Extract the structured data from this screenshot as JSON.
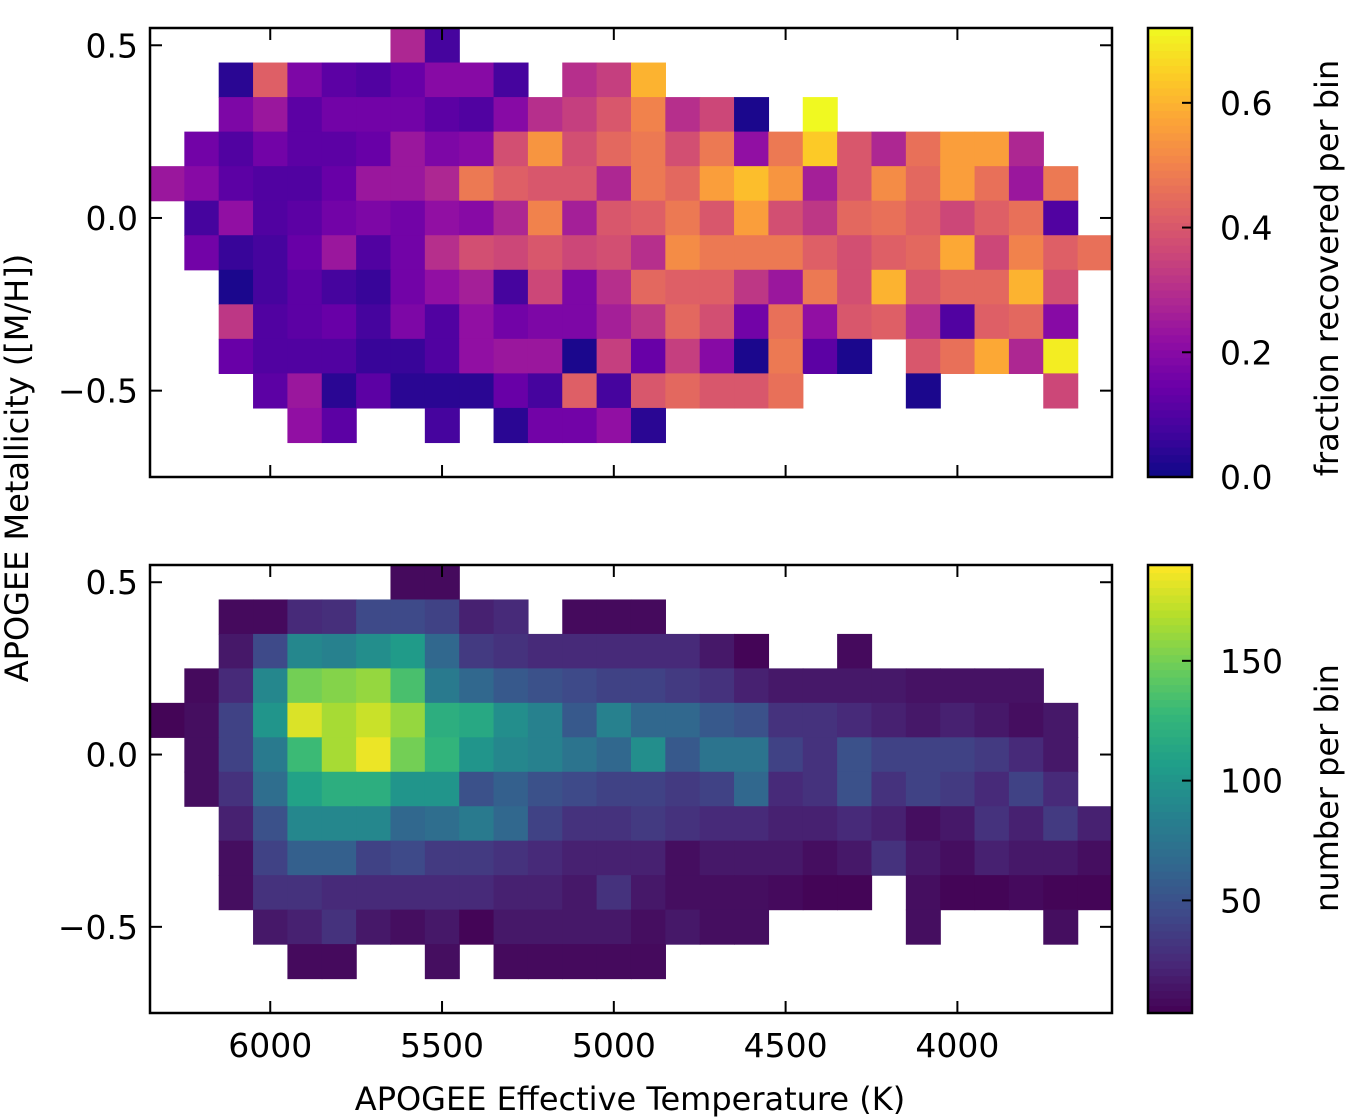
{
  "chart_data": {
    "shared": {
      "ylabel": "APOGEE Metallicity ([M/H])",
      "xlabel": "APOGEE Effective Temperature (K)",
      "x_ticks": [
        6000,
        5500,
        5000,
        4500,
        4000
      ],
      "x_tick_labels": [
        "6000",
        "5500",
        "5000",
        "4500",
        "4000"
      ],
      "y_ticks": [
        0.5,
        0.0,
        -0.5
      ],
      "y_tick_labels": [
        "0.5",
        "0.0",
        "−0.5"
      ],
      "xlim": [
        6350,
        3550
      ],
      "ylim": [
        -0.75,
        0.55
      ],
      "x_bin_start": 6300,
      "x_bin_width": 100,
      "y_bin_start": 0.55,
      "y_bin_height": 0.1
    },
    "panels": [
      {
        "type": "heatmap",
        "colormap": "plasma",
        "colorbar_label": "fraction recovered per bin",
        "colorbar_ticks": [
          0.0,
          0.2,
          0.4,
          0.6
        ],
        "colorbar_tick_labels": [
          "0.0",
          "0.2",
          "0.4",
          "0.6"
        ],
        "vmin": 0.0,
        "vmax": 0.72,
        "rows": [
          [
            null,
            null,
            null,
            null,
            null,
            null,
            null,
            0.28,
            0.08,
            null,
            null,
            null,
            null,
            null,
            null,
            null,
            null,
            null,
            null,
            null,
            null,
            null,
            null,
            null,
            null,
            null,
            null,
            null
          ],
          [
            null,
            null,
            0.04,
            0.42,
            0.18,
            0.12,
            0.1,
            0.14,
            0.2,
            0.2,
            0.08,
            null,
            0.3,
            0.34,
            0.6,
            null,
            null,
            null,
            null,
            null,
            null,
            null,
            null,
            null,
            null,
            null,
            null,
            null
          ],
          [
            null,
            null,
            0.18,
            0.24,
            0.12,
            0.16,
            0.16,
            0.16,
            0.12,
            0.1,
            0.2,
            0.3,
            0.34,
            0.4,
            0.5,
            0.3,
            0.36,
            0.02,
            null,
            0.72,
            null,
            null,
            null,
            null,
            null,
            null,
            null,
            null
          ],
          [
            null,
            0.16,
            0.1,
            0.16,
            0.12,
            0.12,
            0.14,
            0.24,
            0.18,
            0.2,
            0.38,
            0.54,
            0.38,
            0.44,
            0.48,
            0.38,
            0.48,
            0.22,
            0.48,
            0.64,
            0.4,
            0.28,
            0.46,
            0.56,
            0.56,
            0.28,
            null,
            null
          ],
          [
            0.24,
            0.2,
            0.12,
            0.1,
            0.1,
            0.14,
            0.24,
            0.24,
            0.28,
            0.48,
            0.42,
            0.4,
            0.4,
            0.28,
            0.48,
            0.44,
            0.56,
            0.62,
            0.54,
            0.26,
            0.4,
            0.52,
            0.44,
            0.56,
            0.46,
            0.24,
            0.48,
            null
          ],
          [
            null,
            0.08,
            0.22,
            0.1,
            0.12,
            0.16,
            0.18,
            0.16,
            0.22,
            0.2,
            0.28,
            0.5,
            0.26,
            0.4,
            0.42,
            0.48,
            0.4,
            0.56,
            0.38,
            0.32,
            0.44,
            0.46,
            0.42,
            0.36,
            0.42,
            0.46,
            0.1,
            null
          ],
          [
            null,
            0.16,
            0.06,
            0.08,
            0.14,
            0.24,
            0.1,
            0.16,
            0.3,
            0.38,
            0.36,
            0.4,
            0.36,
            0.38,
            0.3,
            0.52,
            0.48,
            0.48,
            0.48,
            0.42,
            0.38,
            0.42,
            0.44,
            0.58,
            0.36,
            0.5,
            0.42,
            0.46
          ],
          [
            null,
            null,
            0.02,
            0.08,
            0.12,
            0.08,
            0.06,
            0.16,
            0.22,
            0.26,
            0.08,
            0.36,
            0.18,
            0.3,
            0.44,
            0.42,
            0.42,
            0.32,
            0.24,
            0.48,
            0.38,
            0.6,
            0.4,
            0.44,
            0.44,
            0.6,
            0.38,
            null
          ],
          [
            null,
            null,
            0.32,
            0.1,
            0.12,
            0.14,
            0.08,
            0.18,
            0.1,
            0.22,
            0.16,
            0.18,
            0.18,
            0.26,
            0.32,
            0.44,
            0.38,
            0.16,
            0.46,
            0.22,
            0.4,
            0.42,
            0.3,
            0.1,
            0.42,
            0.44,
            0.2,
            null
          ],
          [
            null,
            null,
            0.14,
            0.1,
            0.1,
            0.1,
            0.06,
            0.06,
            0.1,
            0.22,
            0.24,
            0.24,
            0.02,
            0.34,
            0.14,
            0.34,
            0.2,
            0.02,
            0.48,
            0.12,
            0.02,
            null,
            0.4,
            0.46,
            0.58,
            0.28,
            0.7,
            null
          ],
          [
            null,
            null,
            null,
            0.12,
            0.24,
            0.04,
            0.12,
            0.04,
            0.04,
            0.04,
            0.14,
            0.08,
            0.42,
            0.08,
            0.4,
            0.44,
            0.4,
            0.4,
            0.46,
            null,
            null,
            null,
            0.02,
            null,
            null,
            null,
            0.36,
            null
          ],
          [
            null,
            null,
            null,
            null,
            0.22,
            0.12,
            null,
            null,
            0.08,
            null,
            0.04,
            0.16,
            0.16,
            0.22,
            0.04,
            null,
            null,
            null,
            null,
            null,
            null,
            null,
            null,
            null,
            null,
            null,
            null,
            null
          ]
        ]
      },
      {
        "type": "heatmap",
        "colormap": "viridis",
        "colorbar_label": "number per bin",
        "colorbar_ticks": [
          50,
          100,
          150
        ],
        "colorbar_tick_labels": [
          "50",
          "100",
          "150"
        ],
        "vmin": 3,
        "vmax": 190,
        "rows": [
          [
            null,
            null,
            null,
            null,
            null,
            null,
            null,
            8,
            8,
            null,
            null,
            null,
            null,
            null,
            null,
            null,
            null,
            null,
            null,
            null,
            null,
            null,
            null,
            null,
            null,
            null,
            null,
            null
          ],
          [
            null,
            null,
            8,
            8,
            25,
            28,
            45,
            45,
            40,
            20,
            25,
            null,
            8,
            8,
            8,
            null,
            null,
            null,
            null,
            null,
            null,
            null,
            null,
            null,
            null,
            null,
            null,
            null
          ],
          [
            null,
            null,
            15,
            45,
            90,
            85,
            95,
            105,
            65,
            35,
            30,
            25,
            25,
            25,
            25,
            25,
            15,
            5,
            null,
            null,
            8,
            null,
            null,
            null,
            null,
            null,
            null,
            null
          ],
          [
            null,
            8,
            25,
            90,
            150,
            155,
            160,
            135,
            80,
            65,
            55,
            50,
            45,
            40,
            40,
            35,
            30,
            20,
            15,
            15,
            15,
            15,
            12,
            12,
            12,
            12,
            null,
            null
          ],
          [
            5,
            10,
            40,
            100,
            180,
            165,
            175,
            160,
            120,
            115,
            95,
            85,
            55,
            85,
            65,
            65,
            55,
            50,
            30,
            30,
            25,
            20,
            15,
            20,
            15,
            10,
            15,
            null
          ],
          [
            null,
            10,
            40,
            80,
            130,
            165,
            185,
            150,
            125,
            100,
            90,
            85,
            75,
            65,
            95,
            55,
            75,
            75,
            40,
            30,
            50,
            40,
            40,
            40,
            35,
            25,
            15,
            null
          ],
          [
            null,
            10,
            30,
            70,
            110,
            120,
            120,
            100,
            100,
            50,
            60,
            50,
            45,
            40,
            40,
            35,
            40,
            65,
            25,
            30,
            50,
            30,
            40,
            35,
            25,
            40,
            25,
            null
          ],
          [
            null,
            null,
            20,
            50,
            90,
            90,
            90,
            65,
            70,
            80,
            65,
            40,
            30,
            30,
            35,
            30,
            25,
            25,
            20,
            20,
            25,
            20,
            10,
            15,
            30,
            20,
            35,
            20
          ],
          [
            null,
            null,
            10,
            40,
            60,
            60,
            40,
            45,
            35,
            35,
            30,
            25,
            20,
            20,
            20,
            10,
            15,
            15,
            15,
            10,
            15,
            30,
            15,
            10,
            20,
            15,
            15,
            10
          ],
          [
            null,
            null,
            10,
            30,
            30,
            25,
            25,
            25,
            25,
            25,
            20,
            20,
            15,
            30,
            15,
            10,
            10,
            10,
            8,
            5,
            5,
            null,
            10,
            5,
            5,
            8,
            5,
            5
          ],
          [
            null,
            null,
            null,
            15,
            20,
            30,
            15,
            10,
            15,
            5,
            15,
            15,
            15,
            15,
            10,
            15,
            10,
            10,
            null,
            null,
            null,
            null,
            10,
            null,
            null,
            null,
            10,
            null
          ],
          [
            null,
            null,
            null,
            null,
            8,
            8,
            null,
            null,
            10,
            null,
            8,
            8,
            8,
            8,
            8,
            null,
            null,
            null,
            null,
            null,
            null,
            null,
            null,
            null,
            null,
            null,
            null,
            null
          ]
        ]
      }
    ]
  }
}
